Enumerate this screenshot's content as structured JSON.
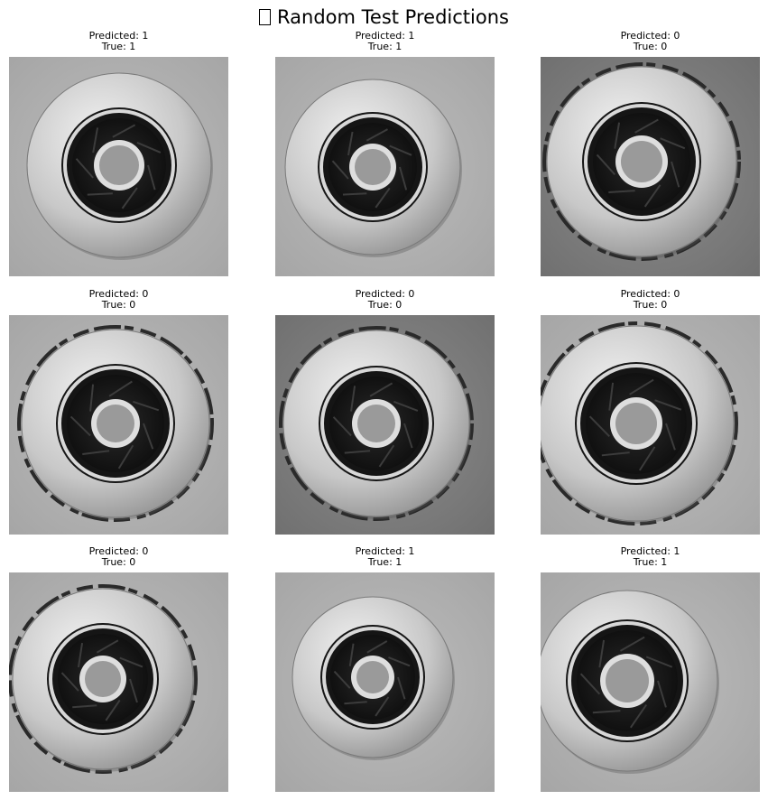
{
  "figure": {
    "title": "Random Test Predictions",
    "title_icon": "missing-glyph-box"
  },
  "panels": [
    {
      "predicted_label": "Predicted: 1",
      "true_label": "True: 1",
      "predicted": 1,
      "true": 1,
      "background": "light-gray",
      "defect": false
    },
    {
      "predicted_label": "Predicted: 1",
      "true_label": "True: 1",
      "predicted": 1,
      "true": 1,
      "background": "light-gray",
      "defect": false
    },
    {
      "predicted_label": "Predicted: 0",
      "true_label": "True: 0",
      "predicted": 0,
      "true": 0,
      "background": "gray",
      "defect": true
    },
    {
      "predicted_label": "Predicted: 0",
      "true_label": "True: 0",
      "predicted": 0,
      "true": 0,
      "background": "light-gray",
      "defect": true
    },
    {
      "predicted_label": "Predicted: 0",
      "true_label": "True: 0",
      "predicted": 0,
      "true": 0,
      "background": "gray",
      "defect": true
    },
    {
      "predicted_label": "Predicted: 0",
      "true_label": "True: 0",
      "predicted": 0,
      "true": 0,
      "background": "light-gray",
      "defect": true
    },
    {
      "predicted_label": "Predicted: 0",
      "true_label": "True: 0",
      "predicted": 0,
      "true": 0,
      "background": "light-gray",
      "defect": true
    },
    {
      "predicted_label": "Predicted: 1",
      "true_label": "True: 1",
      "predicted": 1,
      "true": 1,
      "background": "light-gray",
      "defect": false
    },
    {
      "predicted_label": "Predicted: 1",
      "true_label": "True: 1",
      "predicted": 1,
      "true": 1,
      "background": "light-gray",
      "defect": false
    }
  ]
}
